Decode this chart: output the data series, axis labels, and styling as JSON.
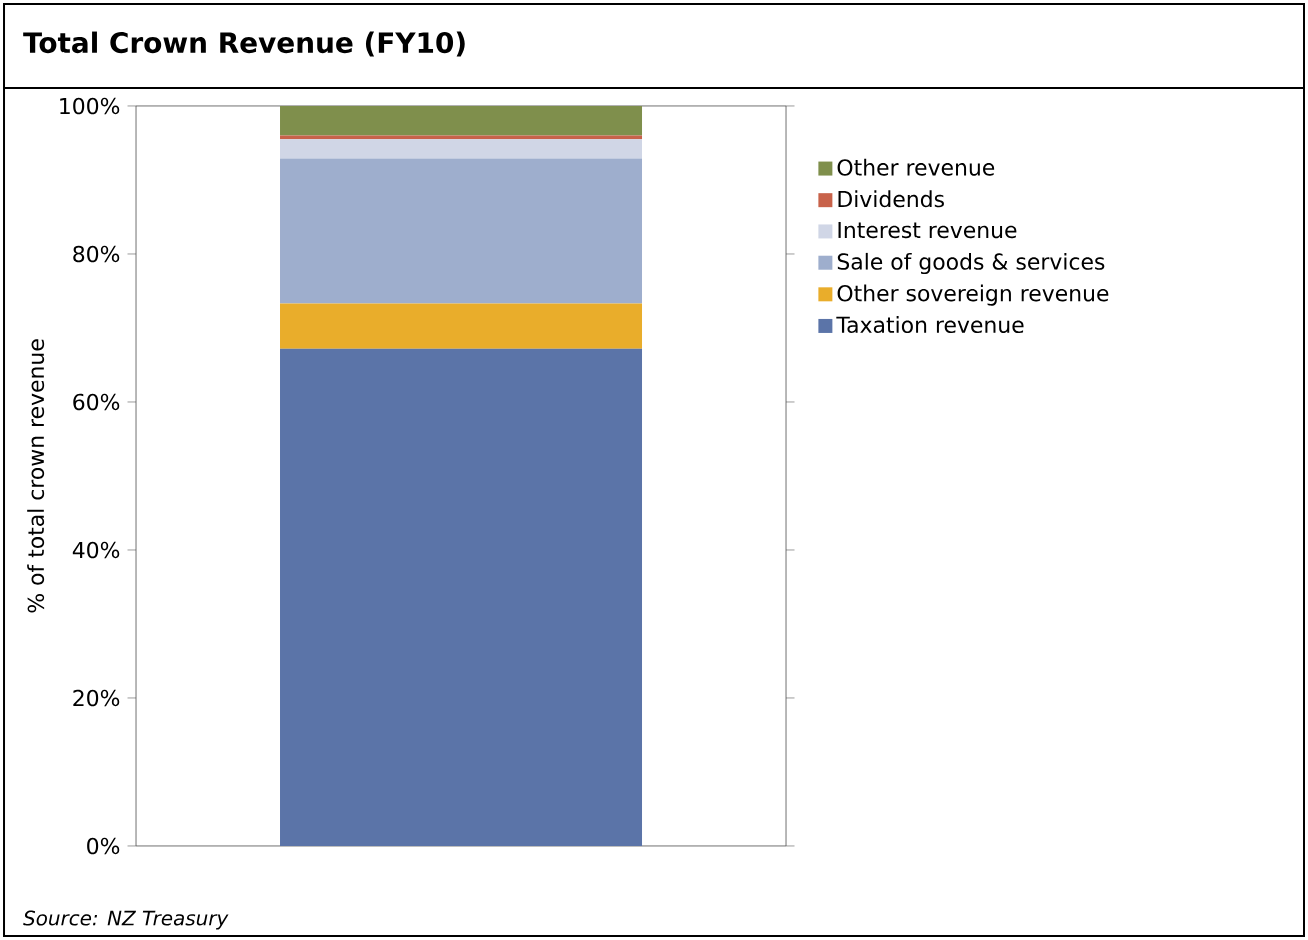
{
  "chart_data": {
    "type": "bar",
    "title": "Total Crown Revenue (FY10)",
    "ylabel": "% of total crown revenue",
    "categories": [
      null
    ],
    "stacked": true,
    "series": [
      {
        "name": "Taxation revenue",
        "color": "#5b74a8",
        "values": [
          67.2
        ]
      },
      {
        "name": "Other sovereign revenue",
        "color": "#e9ad2b",
        "values": [
          6.1
        ]
      },
      {
        "name": "Sale of goods & services",
        "color": "#9eaecd",
        "values": [
          19.6
        ]
      },
      {
        "name": "Interest revenue",
        "color": "#d0d6e6",
        "values": [
          2.6
        ]
      },
      {
        "name": "Dividends",
        "color": "#c8624a",
        "values": [
          0.5
        ]
      },
      {
        "name": "Other revenue",
        "color": "#7f8f4c",
        "values": [
          4.0
        ]
      }
    ],
    "ylim": [
      0,
      100
    ],
    "yticks": [
      {
        "value": 0,
        "label": "0%"
      },
      {
        "value": 20,
        "label": "20%"
      },
      {
        "value": 40,
        "label": "40%"
      },
      {
        "value": 60,
        "label": "60%"
      },
      {
        "value": 80,
        "label": "80%"
      },
      {
        "value": 100,
        "label": "100%"
      }
    ],
    "grid": false,
    "legend": "right",
    "annotations": [
      "Source: NZ Treasury"
    ]
  }
}
